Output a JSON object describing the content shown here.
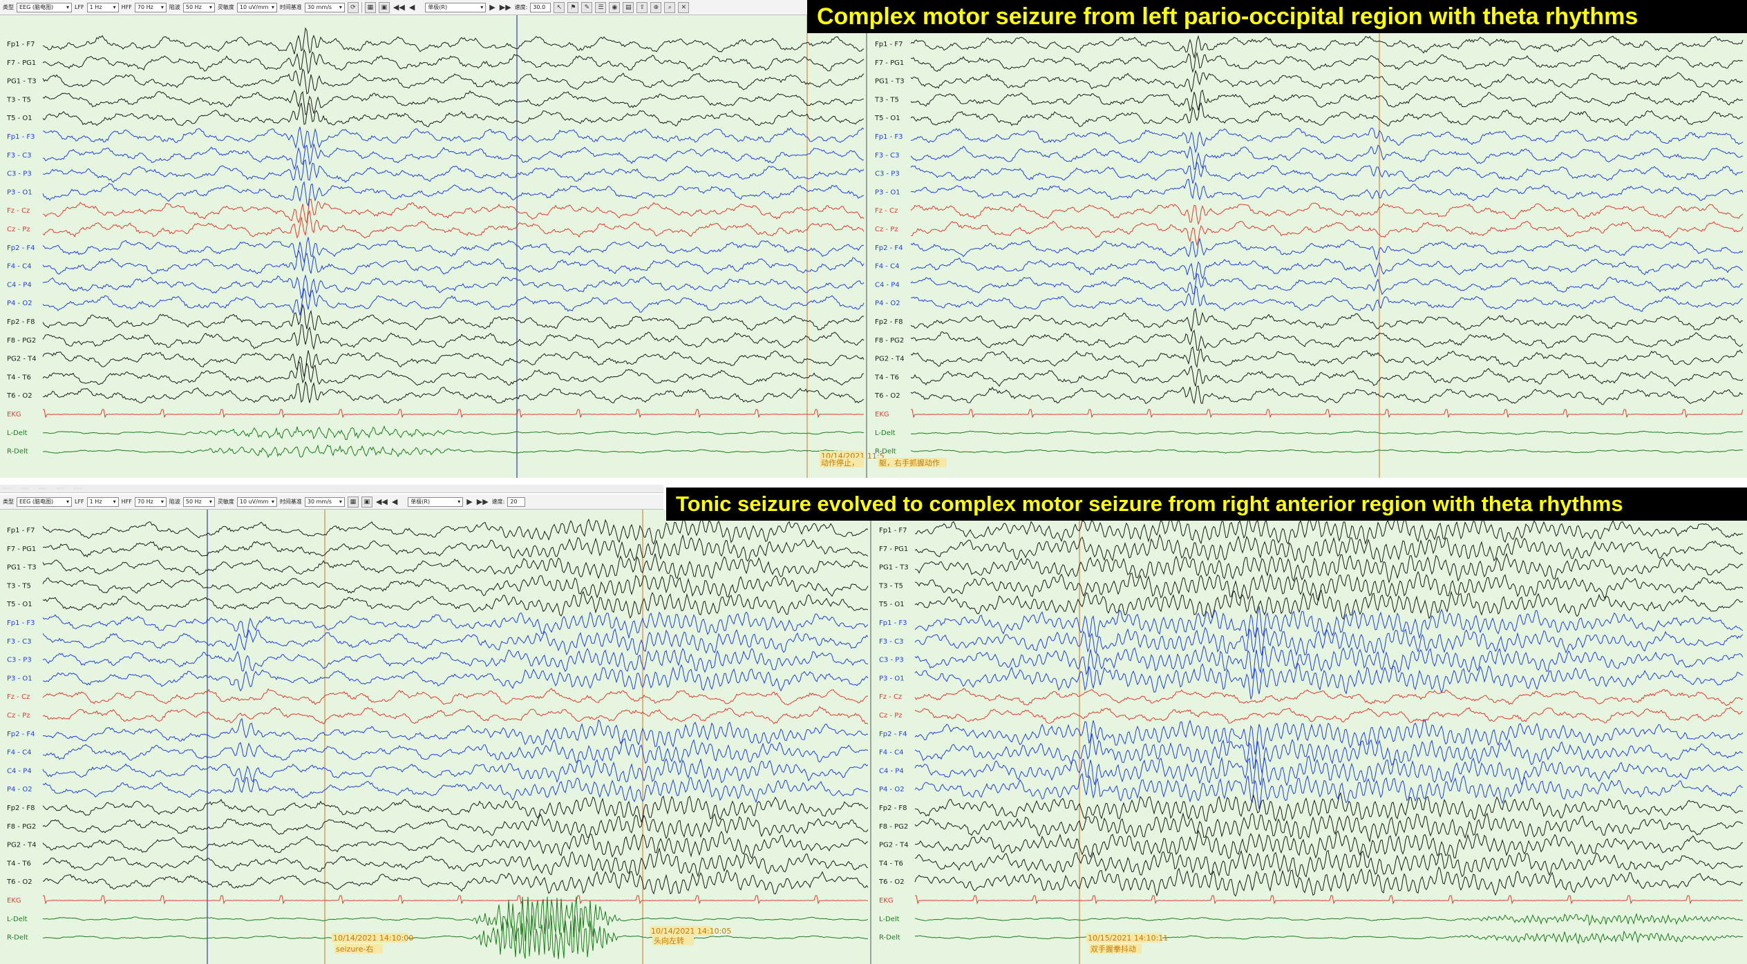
{
  "titles": {
    "top": "Complex motor seizure from left pario-occipital region with theta rhythms",
    "bottom": "Tonic seizure evolved to complex motor seizure from right anterior region with theta rhythms"
  },
  "toolbar": {
    "type_label": "类型",
    "type_value": "EEG (脑电图)",
    "lff_label": "LFF",
    "lff_value": "1 Hz",
    "hff_label": "HFF",
    "hff_value": "70 Hz",
    "notch_label": "陷波",
    "notch_value": "50 Hz",
    "sens_label": "灵敏度",
    "sens_value": "10 uV/mm",
    "timebase_label": "时间基准",
    "timebase_value": "30 mm/s",
    "montage_value": "单极(R)",
    "speed_label": "速度:",
    "speed_value": "30.0",
    "speed_value_bottom": "20"
  },
  "channels": [
    "Fp1 - F7",
    "F7 - PG1",
    "PG1 - T3",
    "T3 - T5",
    "T5 - O1",
    "Fp1 - F3",
    "F3 - C3",
    "C3 - P3",
    "P3 - O1",
    "Fz - Cz",
    "Cz - Pz",
    "Fp2 - F4",
    "F4 - C4",
    "C4 - P4",
    "P4 - O2",
    "Fp2 - F8",
    "F8 - PG2",
    "PG2 - T4",
    "T4 - T6",
    "T6 - O2",
    "EKG",
    "L-Delt",
    "R-Delt"
  ],
  "channel_groups": [
    "black",
    "black",
    "black",
    "black",
    "black",
    "blue",
    "blue",
    "blue",
    "blue",
    "red",
    "red",
    "blue",
    "blue",
    "blue",
    "blue",
    "black",
    "black",
    "black",
    "black",
    "black",
    "ekg",
    "emg",
    "emg"
  ],
  "colors": {
    "background": "#e6f5e0",
    "black": "#1a1a1a",
    "blue": "#1f3fe0",
    "red": "#e23a2c",
    "emg": "#1c7a1c",
    "event_line": "#e39a5a",
    "cursor": "#5a6be0",
    "title_bg": "#000000",
    "title_fg": "#ffff00"
  },
  "annotations": {
    "top_left_time": "10/14/2021 11:5",
    "top_left_event": "动作停止，",
    "top_right_event": "躯，右手抓握动作",
    "bottom_left_time": "10/14/2021 14:10:00",
    "bottom_left_event": "seizure-右",
    "bottom_left_time2": "10/14/2021 14:10:05",
    "bottom_left_event2": "头向左转",
    "bottom_right_time": "10/15/2021 14:10:11",
    "bottom_right_event": "双手握拳抖动"
  }
}
